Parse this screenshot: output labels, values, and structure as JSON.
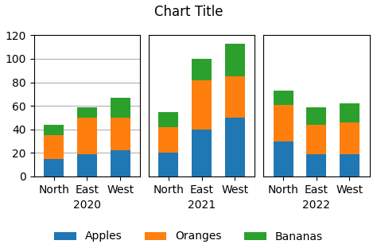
{
  "title": "Chart Title",
  "legend": "lower center",
  "chart_data": [
    {
      "type": "bar",
      "stacked": true,
      "x_label": "2020",
      "categories": [
        "North",
        "East",
        "West"
      ],
      "series": [
        {
          "name": "Apples",
          "values": [
            15,
            19,
            22
          ]
        },
        {
          "name": "Oranges",
          "values": [
            20,
            31,
            28
          ]
        },
        {
          "name": "Bananas",
          "values": [
            9,
            9,
            17
          ]
        }
      ],
      "ylim": [
        0,
        120
      ],
      "yticks": [
        0,
        20,
        40,
        60,
        80,
        100,
        120
      ],
      "grid": true
    },
    {
      "type": "bar",
      "stacked": true,
      "x_label": "2021",
      "categories": [
        "North",
        "East",
        "West"
      ],
      "series": [
        {
          "name": "Apples",
          "values": [
            20,
            40,
            50
          ]
        },
        {
          "name": "Oranges",
          "values": [
            22,
            42,
            35
          ]
        },
        {
          "name": "Bananas",
          "values": [
            13,
            18,
            28
          ]
        }
      ],
      "ylim": [
        0,
        120
      ],
      "yticks": [],
      "grid": false,
      "tick_labels": "x"
    },
    {
      "type": "bar",
      "stacked": true,
      "x_label": "2022",
      "categories": [
        "North",
        "East",
        "West"
      ],
      "series": [
        {
          "name": "Apples",
          "values": [
            30,
            19,
            19
          ]
        },
        {
          "name": "Oranges",
          "values": [
            31,
            25,
            27
          ]
        },
        {
          "name": "Bananas",
          "values": [
            12,
            15,
            16
          ]
        }
      ],
      "ylim": [
        0,
        120
      ],
      "yticks": [],
      "grid": false,
      "tick_labels": "x"
    }
  ]
}
